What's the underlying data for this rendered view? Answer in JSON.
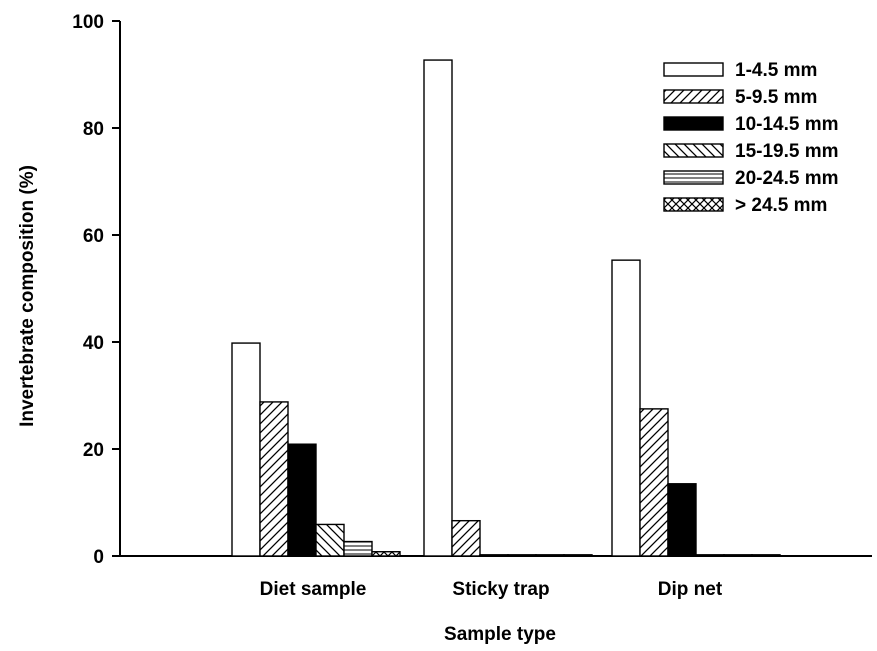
{
  "chart_data": {
    "type": "bar",
    "title": "",
    "xlabel": "Sample type",
    "ylabel": "Invertebrate composition (%)",
    "ylim": [
      0,
      100
    ],
    "yticks": [
      "0",
      "20",
      "40",
      "60",
      "80",
      "100"
    ],
    "categories": [
      "Diet sample",
      "Sticky trap",
      "Dip net"
    ],
    "series": [
      {
        "name": "1-4.5 mm",
        "pattern": "blank",
        "values": [
          39.8,
          92.7,
          55.3
        ]
      },
      {
        "name": "5-9.5 mm",
        "pattern": "diag-forward",
        "values": [
          28.8,
          6.6,
          27.5
        ]
      },
      {
        "name": "10-14.5 mm",
        "pattern": "solid",
        "values": [
          20.9,
          0.2,
          13.5
        ]
      },
      {
        "name": "15-19.5 mm",
        "pattern": "diag-back",
        "values": [
          5.9,
          0.1,
          0.2
        ]
      },
      {
        "name": "20-24.5 mm",
        "pattern": "horizontal",
        "values": [
          2.7,
          0.1,
          0.1
        ]
      },
      {
        "name": "> 24.5 mm",
        "pattern": "crosshatch",
        "values": [
          0.8,
          0.1,
          0.1
        ]
      }
    ],
    "legend_position": "top-right",
    "grid": false,
    "colors": {
      "ink": "#000000",
      "background": "#ffffff"
    }
  }
}
